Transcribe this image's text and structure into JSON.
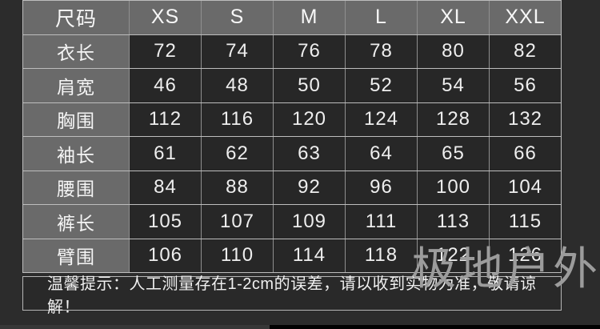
{
  "page": {
    "background": "#2c2c2c"
  },
  "size_chart": {
    "columns": [
      "尺码",
      "XS",
      "S",
      "M",
      "L",
      "XL",
      "XXL"
    ],
    "rows": [
      {
        "label": "衣长",
        "values": [
          "72",
          "74",
          "76",
          "78",
          "80",
          "82"
        ]
      },
      {
        "label": "肩宽",
        "values": [
          "46",
          "48",
          "50",
          "52",
          "54",
          "56"
        ]
      },
      {
        "label": "胸围",
        "values": [
          "112",
          "116",
          "120",
          "124",
          "128",
          "132"
        ]
      },
      {
        "label": "袖长",
        "values": [
          "61",
          "62",
          "63",
          "64",
          "65",
          "66"
        ]
      },
      {
        "label": "腰围",
        "values": [
          "84",
          "88",
          "92",
          "96",
          "100",
          "104"
        ]
      },
      {
        "label": "裤长",
        "values": [
          "105",
          "107",
          "109",
          "111",
          "113",
          "115"
        ]
      },
      {
        "label": "臂围",
        "values": [
          "106",
          "110",
          "114",
          "118",
          "122",
          "126"
        ]
      }
    ],
    "colors": {
      "header_bg": "#6a6a6a",
      "label_bg": "#6a6a6a",
      "value_bg": "#272727",
      "grid_line": "#bdbdbd",
      "text": "#f2f2f2"
    }
  },
  "note": {
    "text": "温馨提示：人工测量存在1-2cm的误差，请以收到实物为准，敬请谅解！"
  },
  "watermark": {
    "text": "极地户外",
    "color": "#9c9c9c"
  }
}
